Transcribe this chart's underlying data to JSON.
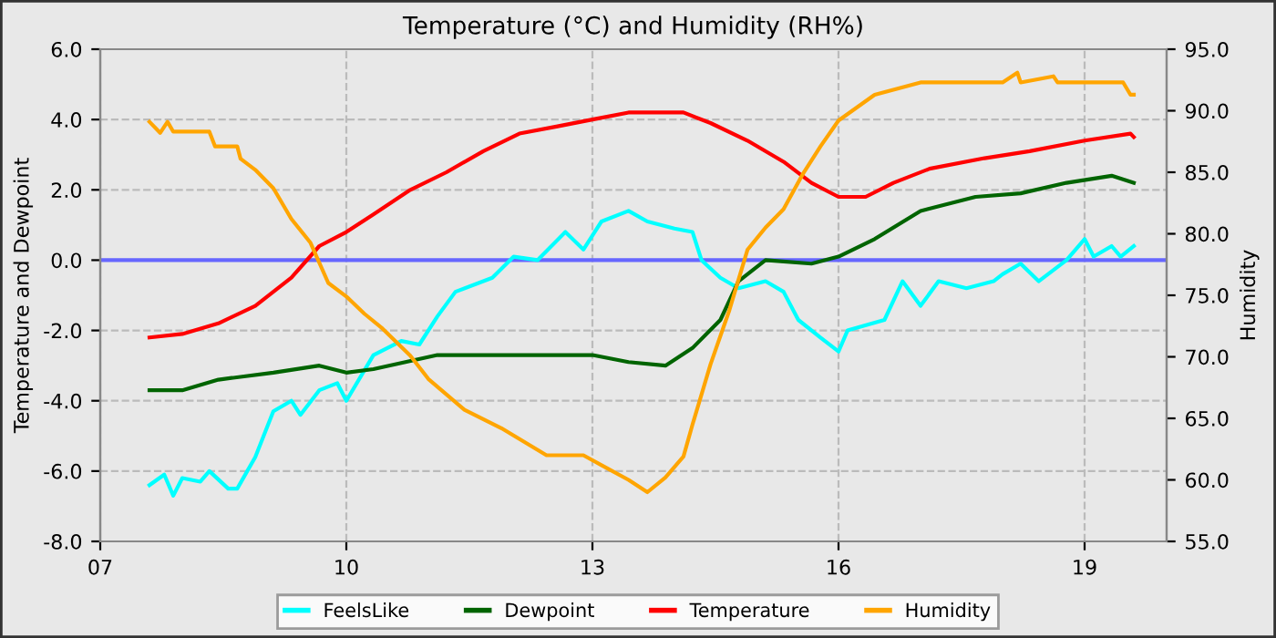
{
  "chart_data": {
    "type": "line",
    "title": "Temperature (°C) and Humidity (RH%)",
    "ylabel": "Temperature and Dewpoint",
    "y2label": "Humidity",
    "xlim": [
      7,
      20
    ],
    "xticks": [
      {
        "value": 7,
        "label": "07"
      },
      {
        "value": 10,
        "label": "10"
      },
      {
        "value": 13,
        "label": "13"
      },
      {
        "value": 16,
        "label": "16"
      },
      {
        "value": 19,
        "label": "19"
      }
    ],
    "ylim": [
      -8,
      6
    ],
    "yticks": [
      {
        "value": -8,
        "label": "-8.0"
      },
      {
        "value": -6,
        "label": "-6.0"
      },
      {
        "value": -4,
        "label": "-4.0"
      },
      {
        "value": -2,
        "label": "-2.0"
      },
      {
        "value": 0,
        "label": "0.0"
      },
      {
        "value": 2,
        "label": "2.0"
      },
      {
        "value": 4,
        "label": "4.0"
      },
      {
        "value": 6,
        "label": "6.0"
      }
    ],
    "y2lim": [
      55,
      95
    ],
    "y2ticks": [
      {
        "value": 55,
        "label": "55.0"
      },
      {
        "value": 60,
        "label": "60.0"
      },
      {
        "value": 65,
        "label": "65.0"
      },
      {
        "value": 70,
        "label": "70.0"
      },
      {
        "value": 75,
        "label": "75.0"
      },
      {
        "value": 80,
        "label": "80.0"
      },
      {
        "value": 85,
        "label": "85.0"
      },
      {
        "value": 90,
        "label": "90.0"
      },
      {
        "value": 95,
        "label": "95.0"
      }
    ],
    "grid": true,
    "legend": "bottom",
    "marker": "none",
    "line_style": "solid",
    "ref_lines": [
      {
        "axis": "y",
        "value": 0,
        "color": "#6666ff"
      }
    ],
    "series": [
      {
        "name": "FeelsLike",
        "color": "#00ffff",
        "x": [
          7.6,
          7.78,
          7.89,
          8.0,
          8.22,
          8.33,
          8.56,
          8.67,
          8.89,
          9.11,
          9.33,
          9.44,
          9.67,
          9.89,
          10.0,
          10.33,
          10.67,
          10.89,
          11.11,
          11.33,
          11.78,
          12.04,
          12.33,
          12.67,
          12.89,
          13.11,
          13.44,
          13.67,
          14.0,
          14.22,
          14.33,
          14.56,
          14.78,
          15.11,
          15.33,
          15.51,
          15.78,
          16.0,
          16.11,
          16.56,
          16.78,
          17.0,
          17.22,
          17.56,
          17.89,
          18.0,
          18.22,
          18.44,
          18.78,
          19.0,
          19.11,
          19.33,
          19.44,
          19.6
        ],
        "values": [
          -6.4,
          -6.1,
          -6.7,
          -6.2,
          -6.3,
          -6.0,
          -6.5,
          -6.5,
          -5.6,
          -4.3,
          -4.0,
          -4.4,
          -3.7,
          -3.5,
          -4.0,
          -2.7,
          -2.3,
          -2.4,
          -1.6,
          -0.9,
          -0.5,
          0.1,
          0.0,
          0.8,
          0.3,
          1.1,
          1.4,
          1.1,
          0.9,
          0.8,
          0.0,
          -0.5,
          -0.8,
          -0.6,
          -0.9,
          -1.7,
          -2.2,
          -2.6,
          -2.0,
          -1.7,
          -0.6,
          -1.3,
          -0.6,
          -0.8,
          -0.6,
          -0.4,
          -0.1,
          -0.6,
          0.0,
          0.6,
          0.1,
          0.4,
          0.1,
          0.4
        ]
      },
      {
        "name": "Dewpoint",
        "color": "#006400",
        "x": [
          7.6,
          8.0,
          8.44,
          9.11,
          9.67,
          10.0,
          10.33,
          11.11,
          12.0,
          13.0,
          13.44,
          13.89,
          14.22,
          14.56,
          14.78,
          15.11,
          15.67,
          16.0,
          16.44,
          17.0,
          17.67,
          18.22,
          18.78,
          19.33,
          19.6
        ],
        "values": [
          -3.7,
          -3.7,
          -3.4,
          -3.2,
          -3.0,
          -3.2,
          -3.1,
          -2.7,
          -2.7,
          -2.7,
          -2.9,
          -3.0,
          -2.5,
          -1.7,
          -0.6,
          0.0,
          -0.1,
          0.1,
          0.6,
          1.4,
          1.8,
          1.9,
          2.2,
          2.4,
          2.2
        ]
      },
      {
        "name": "Temperature",
        "color": "#ff0000",
        "x": [
          7.6,
          8.0,
          8.44,
          8.89,
          9.33,
          9.67,
          10.0,
          10.33,
          10.78,
          11.22,
          11.67,
          12.11,
          12.56,
          13.0,
          13.44,
          14.11,
          14.44,
          14.89,
          15.33,
          15.67,
          16.0,
          16.33,
          16.67,
          17.11,
          17.78,
          18.33,
          19.0,
          19.56,
          19.6
        ],
        "values": [
          -2.2,
          -2.1,
          -1.8,
          -1.3,
          -0.5,
          0.4,
          0.8,
          1.3,
          2.0,
          2.5,
          3.1,
          3.6,
          3.8,
          4.0,
          4.2,
          4.2,
          3.9,
          3.4,
          2.8,
          2.2,
          1.8,
          1.8,
          2.2,
          2.6,
          2.9,
          3.1,
          3.4,
          3.6,
          3.5
        ]
      },
      {
        "name": "Humidity",
        "color": "#ffa500",
        "axis": "y2",
        "x": [
          7.6,
          7.73,
          7.82,
          7.89,
          8.33,
          8.4,
          8.67,
          8.71,
          8.89,
          9.11,
          9.33,
          9.56,
          9.78,
          10.0,
          10.22,
          10.44,
          10.78,
          11.0,
          11.44,
          11.89,
          12.44,
          12.89,
          13.11,
          13.44,
          13.67,
          13.89,
          14.11,
          14.22,
          14.44,
          14.67,
          14.89,
          15.11,
          15.33,
          15.56,
          15.78,
          16.0,
          16.44,
          17.0,
          18.0,
          18.18,
          18.22,
          18.62,
          18.67,
          19.47,
          19.56,
          19.6
        ],
        "values": [
          89.1,
          88.2,
          89.1,
          88.3,
          88.3,
          87.1,
          87.1,
          86.1,
          85.2,
          83.7,
          81.2,
          79.3,
          76.0,
          74.9,
          73.5,
          72.3,
          70.1,
          68.2,
          65.7,
          64.2,
          62.0,
          62.0,
          61.2,
          60.0,
          59.0,
          60.2,
          61.9,
          64.5,
          69.4,
          73.8,
          78.7,
          80.5,
          82.0,
          84.8,
          87.1,
          89.2,
          91.3,
          92.3,
          92.3,
          93.1,
          92.3,
          92.8,
          92.3,
          92.3,
          91.3,
          91.3
        ]
      }
    ]
  }
}
